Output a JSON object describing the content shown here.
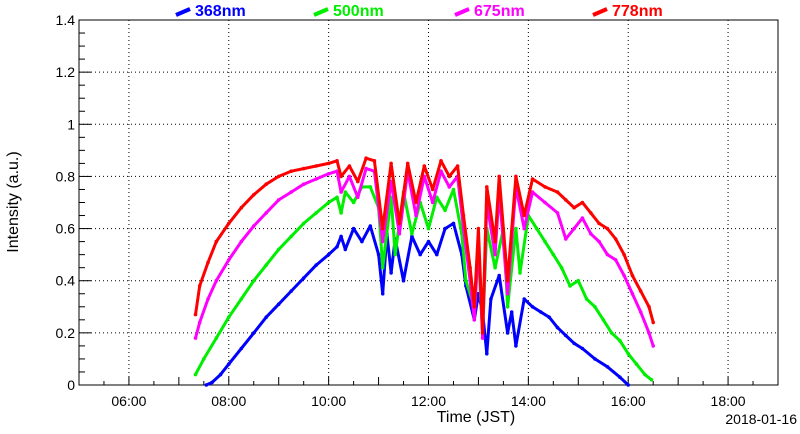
{
  "chart_data": {
    "type": "scatter",
    "title": "",
    "xlabel": "Time (JST)",
    "ylabel": "Intensity (a.u.)",
    "date_label": "2018-01-16",
    "xlim": [
      "05:00",
      "19:00"
    ],
    "ylim": [
      0,
      1.4
    ],
    "x_ticks": [
      "06:00",
      "08:00",
      "10:00",
      "12:00",
      "14:00",
      "16:00",
      "18:00"
    ],
    "y_ticks": [
      "0",
      "0.2",
      "0.4",
      "0.6",
      "0.8",
      "1",
      "1.2",
      "1.4"
    ],
    "grid": true,
    "legend_position": "top",
    "series": [
      {
        "name": "368nm",
        "color": "#0000ff",
        "points": [
          [
            "07:33",
            0.0
          ],
          [
            "07:40",
            0.01
          ],
          [
            "07:50",
            0.04
          ],
          [
            "08:00",
            0.08
          ],
          [
            "08:15",
            0.14
          ],
          [
            "08:30",
            0.2
          ],
          [
            "08:45",
            0.26
          ],
          [
            "09:00",
            0.31
          ],
          [
            "09:15",
            0.36
          ],
          [
            "09:30",
            0.41
          ],
          [
            "09:45",
            0.46
          ],
          [
            "10:00",
            0.5
          ],
          [
            "10:10",
            0.53
          ],
          [
            "10:15",
            0.57
          ],
          [
            "10:20",
            0.52
          ],
          [
            "10:30",
            0.6
          ],
          [
            "10:40",
            0.55
          ],
          [
            "10:50",
            0.61
          ],
          [
            "11:00",
            0.5
          ],
          [
            "11:05",
            0.35
          ],
          [
            "11:10",
            0.58
          ],
          [
            "11:15",
            0.43
          ],
          [
            "11:20",
            0.56
          ],
          [
            "11:30",
            0.4
          ],
          [
            "11:40",
            0.57
          ],
          [
            "11:50",
            0.5
          ],
          [
            "12:00",
            0.55
          ],
          [
            "12:10",
            0.5
          ],
          [
            "12:20",
            0.6
          ],
          [
            "12:30",
            0.62
          ],
          [
            "12:40",
            0.5
          ],
          [
            "12:45",
            0.38
          ],
          [
            "12:55",
            0.25
          ],
          [
            "13:00",
            0.35
          ],
          [
            "13:05",
            0.28
          ],
          [
            "13:10",
            0.12
          ],
          [
            "13:15",
            0.33
          ],
          [
            "13:25",
            0.42
          ],
          [
            "13:35",
            0.2
          ],
          [
            "13:40",
            0.28
          ],
          [
            "13:45",
            0.15
          ],
          [
            "13:55",
            0.33
          ],
          [
            "14:05",
            0.3
          ],
          [
            "14:15",
            0.28
          ],
          [
            "14:25",
            0.26
          ],
          [
            "14:35",
            0.22
          ],
          [
            "14:45",
            0.19
          ],
          [
            "14:55",
            0.16
          ],
          [
            "15:05",
            0.14
          ],
          [
            "15:20",
            0.1
          ],
          [
            "15:35",
            0.07
          ],
          [
            "15:50",
            0.03
          ],
          [
            "16:00",
            0.0
          ]
        ]
      },
      {
        "name": "500nm",
        "color": "#00ee00",
        "points": [
          [
            "07:20",
            0.04
          ],
          [
            "07:30",
            0.1
          ],
          [
            "07:45",
            0.18
          ],
          [
            "08:00",
            0.26
          ],
          [
            "08:15",
            0.33
          ],
          [
            "08:30",
            0.4
          ],
          [
            "08:45",
            0.46
          ],
          [
            "09:00",
            0.52
          ],
          [
            "09:15",
            0.57
          ],
          [
            "09:30",
            0.62
          ],
          [
            "09:45",
            0.66
          ],
          [
            "10:00",
            0.7
          ],
          [
            "10:10",
            0.72
          ],
          [
            "10:15",
            0.66
          ],
          [
            "10:20",
            0.74
          ],
          [
            "10:30",
            0.7
          ],
          [
            "10:40",
            0.76
          ],
          [
            "10:50",
            0.76
          ],
          [
            "11:00",
            0.68
          ],
          [
            "11:05",
            0.45
          ],
          [
            "11:15",
            0.72
          ],
          [
            "11:20",
            0.5
          ],
          [
            "11:30",
            0.74
          ],
          [
            "11:40",
            0.58
          ],
          [
            "11:50",
            0.7
          ],
          [
            "12:00",
            0.6
          ],
          [
            "12:10",
            0.72
          ],
          [
            "12:20",
            0.67
          ],
          [
            "12:30",
            0.75
          ],
          [
            "12:40",
            0.58
          ],
          [
            "12:45",
            0.4
          ],
          [
            "12:55",
            0.3
          ],
          [
            "13:00",
            0.5
          ],
          [
            "13:05",
            0.2
          ],
          [
            "13:10",
            0.6
          ],
          [
            "13:20",
            0.45
          ],
          [
            "13:30",
            0.6
          ],
          [
            "13:35",
            0.3
          ],
          [
            "13:45",
            0.6
          ],
          [
            "13:50",
            0.43
          ],
          [
            "14:00",
            0.65
          ],
          [
            "14:10",
            0.6
          ],
          [
            "14:20",
            0.55
          ],
          [
            "14:30",
            0.5
          ],
          [
            "14:40",
            0.45
          ],
          [
            "14:50",
            0.38
          ],
          [
            "15:00",
            0.4
          ],
          [
            "15:10",
            0.33
          ],
          [
            "15:20",
            0.3
          ],
          [
            "15:30",
            0.25
          ],
          [
            "15:40",
            0.2
          ],
          [
            "15:50",
            0.17
          ],
          [
            "16:00",
            0.12
          ],
          [
            "16:10",
            0.08
          ],
          [
            "16:20",
            0.04
          ],
          [
            "16:28",
            0.02
          ]
        ]
      },
      {
        "name": "675nm",
        "color": "#ff00ff",
        "points": [
          [
            "07:20",
            0.18
          ],
          [
            "07:25",
            0.24
          ],
          [
            "07:35",
            0.33
          ],
          [
            "07:45",
            0.4
          ],
          [
            "08:00",
            0.48
          ],
          [
            "08:15",
            0.55
          ],
          [
            "08:30",
            0.61
          ],
          [
            "08:45",
            0.66
          ],
          [
            "09:00",
            0.71
          ],
          [
            "09:15",
            0.74
          ],
          [
            "09:30",
            0.77
          ],
          [
            "09:45",
            0.79
          ],
          [
            "10:00",
            0.81
          ],
          [
            "10:10",
            0.82
          ],
          [
            "10:15",
            0.74
          ],
          [
            "10:25",
            0.8
          ],
          [
            "10:35",
            0.72
          ],
          [
            "10:45",
            0.83
          ],
          [
            "10:55",
            0.82
          ],
          [
            "11:05",
            0.55
          ],
          [
            "11:15",
            0.78
          ],
          [
            "11:25",
            0.58
          ],
          [
            "11:35",
            0.82
          ],
          [
            "11:45",
            0.65
          ],
          [
            "11:55",
            0.8
          ],
          [
            "12:05",
            0.7
          ],
          [
            "12:15",
            0.82
          ],
          [
            "12:25",
            0.76
          ],
          [
            "12:35",
            0.8
          ],
          [
            "12:42",
            0.6
          ],
          [
            "12:50",
            0.4
          ],
          [
            "12:55",
            0.25
          ],
          [
            "13:00",
            0.55
          ],
          [
            "13:05",
            0.18
          ],
          [
            "13:10",
            0.7
          ],
          [
            "13:20",
            0.5
          ],
          [
            "13:25",
            0.74
          ],
          [
            "13:35",
            0.35
          ],
          [
            "13:45",
            0.76
          ],
          [
            "13:55",
            0.6
          ],
          [
            "14:05",
            0.74
          ],
          [
            "14:20",
            0.7
          ],
          [
            "14:35",
            0.66
          ],
          [
            "14:45",
            0.56
          ],
          [
            "14:55",
            0.6
          ],
          [
            "15:05",
            0.64
          ],
          [
            "15:15",
            0.58
          ],
          [
            "15:25",
            0.55
          ],
          [
            "15:35",
            0.5
          ],
          [
            "15:45",
            0.48
          ],
          [
            "15:55",
            0.42
          ],
          [
            "16:05",
            0.35
          ],
          [
            "16:15",
            0.28
          ],
          [
            "16:25",
            0.2
          ],
          [
            "16:30",
            0.15
          ]
        ]
      },
      {
        "name": "778nm",
        "color": "#ff0000",
        "points": [
          [
            "07:20",
            0.27
          ],
          [
            "07:25",
            0.38
          ],
          [
            "07:35",
            0.47
          ],
          [
            "07:45",
            0.55
          ],
          [
            "08:00",
            0.62
          ],
          [
            "08:15",
            0.68
          ],
          [
            "08:30",
            0.73
          ],
          [
            "08:45",
            0.77
          ],
          [
            "09:00",
            0.8
          ],
          [
            "09:15",
            0.82
          ],
          [
            "09:30",
            0.83
          ],
          [
            "09:45",
            0.84
          ],
          [
            "10:00",
            0.85
          ],
          [
            "10:10",
            0.86
          ],
          [
            "10:15",
            0.8
          ],
          [
            "10:25",
            0.84
          ],
          [
            "10:35",
            0.78
          ],
          [
            "10:45",
            0.87
          ],
          [
            "10:55",
            0.86
          ],
          [
            "11:05",
            0.6
          ],
          [
            "11:15",
            0.85
          ],
          [
            "11:25",
            0.62
          ],
          [
            "11:35",
            0.85
          ],
          [
            "11:45",
            0.7
          ],
          [
            "11:55",
            0.84
          ],
          [
            "12:05",
            0.75
          ],
          [
            "12:15",
            0.86
          ],
          [
            "12:25",
            0.8
          ],
          [
            "12:35",
            0.84
          ],
          [
            "12:42",
            0.65
          ],
          [
            "12:50",
            0.45
          ],
          [
            "12:55",
            0.3
          ],
          [
            "13:00",
            0.6
          ],
          [
            "13:05",
            0.2
          ],
          [
            "13:10",
            0.76
          ],
          [
            "13:20",
            0.55
          ],
          [
            "13:25",
            0.8
          ],
          [
            "13:35",
            0.4
          ],
          [
            "13:45",
            0.8
          ],
          [
            "13:55",
            0.65
          ],
          [
            "14:05",
            0.79
          ],
          [
            "14:20",
            0.76
          ],
          [
            "14:35",
            0.74
          ],
          [
            "14:45",
            0.71
          ],
          [
            "14:55",
            0.68
          ],
          [
            "15:05",
            0.7
          ],
          [
            "15:15",
            0.66
          ],
          [
            "15:25",
            0.62
          ],
          [
            "15:35",
            0.6
          ],
          [
            "15:45",
            0.56
          ],
          [
            "15:55",
            0.5
          ],
          [
            "16:05",
            0.42
          ],
          [
            "16:15",
            0.36
          ],
          [
            "16:25",
            0.3
          ],
          [
            "16:30",
            0.24
          ]
        ]
      }
    ]
  }
}
